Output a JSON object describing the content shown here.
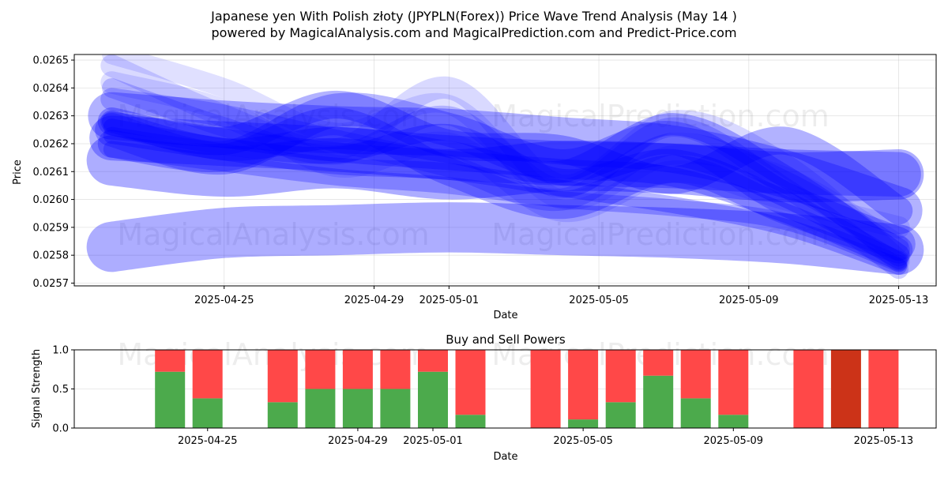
{
  "title_line1": "Japanese yen With Polish złoty (JPYPLN(Forex)) Price Wave Trend Analysis (May 14 )",
  "title_line2": "powered by MagicalAnalysis.com and MagicalPrediction.com and Predict-Price.com",
  "watermarks": [
    "MagicalAnalysis.com",
    "MagicalPrediction.com"
  ],
  "chart_data": [
    {
      "type": "area",
      "xlabel": "Date",
      "ylabel": "Price",
      "x_start": "2025-04-22",
      "x_end": "2025-05-13",
      "xlim": [
        "2025-04-21",
        "2025-05-14"
      ],
      "ylim": [
        0.02569,
        0.02652
      ],
      "yticks": [
        "0.0257",
        "0.0258",
        "0.0259",
        "0.0260",
        "0.0261",
        "0.0262",
        "0.0263",
        "0.0264",
        "0.0265"
      ],
      "xticks": [
        "2025-04-25",
        "2025-04-29",
        "2025-05-01",
        "2025-05-05",
        "2025-05-09",
        "2025-05-13"
      ],
      "grid": true,
      "band_color": "#0000ff",
      "series": [
        {
          "values": [
            0.02614,
            0.0261,
            0.02613,
            0.02609,
            0.02612,
            0.02611,
            0.02608,
            0.02609
          ],
          "width": 0.00018,
          "opacity": 0.32
        },
        {
          "values": [
            0.02622,
            0.0262,
            0.02618,
            0.02615,
            0.02613,
            0.02612,
            0.0261,
            0.02609
          ],
          "width": 0.00016,
          "opacity": 0.3
        },
        {
          "values": [
            0.02583,
            0.02588,
            0.02589,
            0.0259,
            0.02589,
            0.02588,
            0.02586,
            0.02582
          ],
          "width": 0.00018,
          "opacity": 0.32
        },
        {
          "values": [
            0.0263,
            0.02627,
            0.02625,
            0.02624,
            0.02621,
            0.02618,
            0.02609,
            0.02596
          ],
          "width": 0.00017,
          "opacity": 0.3
        },
        {
          "values": [
            0.02628,
            0.02621,
            0.02634,
            0.0262,
            0.02618,
            0.02607,
            0.02621,
            0.02596
          ],
          "width": 0.0001,
          "opacity": 0.3
        },
        {
          "values": [
            0.02625,
            0.02615,
            0.02632,
            0.02625,
            0.02612,
            0.02622,
            0.026,
            0.02584
          ],
          "width": 0.00012,
          "opacity": 0.28
        },
        {
          "values": [
            0.0262,
            0.02615,
            0.02628,
            0.0261,
            0.02598,
            0.02611,
            0.02596,
            0.02582
          ],
          "width": 0.0001,
          "opacity": 0.28
        },
        {
          "values": [
            0.02628,
            0.02618,
            0.02622,
            0.02617,
            0.0261,
            0.02627,
            0.02608,
            0.0258
          ],
          "width": 8e-05,
          "opacity": 0.3
        },
        {
          "values": [
            0.02626,
            0.02619,
            0.02616,
            0.02624,
            0.02608,
            0.02615,
            0.026,
            0.02578
          ],
          "width": 6e-05,
          "opacity": 0.3
        },
        {
          "values": [
            0.02628,
            0.02622,
            0.02617,
            0.02614,
            0.02611,
            0.02608,
            0.02595,
            0.02578
          ],
          "width": 7e-05,
          "opacity": 0.3
        },
        {
          "values": [
            0.02623,
            0.02617,
            0.02612,
            0.0261,
            0.02604,
            0.02598,
            0.0259,
            0.02576
          ],
          "width": 6e-05,
          "opacity": 0.28
        },
        {
          "values": [
            0.02618,
            0.02613,
            0.02608,
            0.02605,
            0.026,
            0.02597,
            0.02592,
            0.02577
          ],
          "width": 6e-05,
          "opacity": 0.26
        },
        {
          "values": [
            0.02636,
            0.0263,
            0.02621,
            0.02612,
            0.026,
            0.0262,
            0.02606,
            0.02582
          ],
          "width": 8e-05,
          "opacity": 0.22
        },
        {
          "values": [
            0.0264,
            0.02626,
            0.02616,
            0.0263,
            0.02604,
            0.02626,
            0.02604,
            0.02575
          ],
          "width": 7e-05,
          "opacity": 0.2
        },
        {
          "values": [
            0.02648,
            0.0263,
            0.02618,
            0.0264,
            0.02605,
            0.02628,
            0.02612,
            0.02578
          ],
          "width": 8e-05,
          "opacity": 0.15
        },
        {
          "values": [
            0.02652,
            0.0264,
            0.02624,
            0.02634,
            0.026,
            0.02616,
            0.02608,
            0.02584
          ],
          "width": 7e-05,
          "opacity": 0.12
        },
        {
          "values": [
            0.02642,
            0.02632,
            0.02612,
            0.0262,
            0.02596,
            0.0261,
            0.026,
            0.0259
          ],
          "width": 8e-05,
          "opacity": 0.13
        }
      ]
    },
    {
      "type": "bar",
      "title": "Buy and Sell Powers",
      "xlabel": "Date",
      "ylabel": "Signal Strength",
      "ylim": [
        0,
        1
      ],
      "yticks": [
        "0.0",
        "0.5",
        "1.0"
      ],
      "xticks": [
        "2025-04-25",
        "2025-04-29",
        "2025-05-01",
        "2025-05-05",
        "2025-05-09",
        "2025-05-13"
      ],
      "grid": true,
      "colors": {
        "buy": "#4caa4c",
        "sell": "#ff4848",
        "strong_sell": "#cc3318"
      },
      "bars": [
        {
          "date": "2025-04-24",
          "buy": 0.72,
          "sell": 0.28
        },
        {
          "date": "2025-04-25",
          "buy": 0.38,
          "sell": 0.62
        },
        {
          "date": "2025-04-27",
          "buy": 0.33,
          "sell": 0.67
        },
        {
          "date": "2025-04-28",
          "buy": 0.5,
          "sell": 0.5
        },
        {
          "date": "2025-04-29",
          "buy": 0.5,
          "sell": 0.5
        },
        {
          "date": "2025-04-30",
          "buy": 0.5,
          "sell": 0.5
        },
        {
          "date": "2025-05-01",
          "buy": 0.72,
          "sell": 0.28
        },
        {
          "date": "2025-05-02",
          "buy": 0.17,
          "sell": 0.83
        },
        {
          "date": "2025-05-04",
          "buy": 0.0,
          "sell": 1.0
        },
        {
          "date": "2025-05-05",
          "buy": 0.11,
          "sell": 0.89
        },
        {
          "date": "2025-05-06",
          "buy": 0.33,
          "sell": 0.67
        },
        {
          "date": "2025-05-07",
          "buy": 0.67,
          "sell": 0.33
        },
        {
          "date": "2025-05-08",
          "buy": 0.38,
          "sell": 0.62
        },
        {
          "date": "2025-05-09",
          "buy": 0.17,
          "sell": 0.83
        },
        {
          "date": "2025-05-11",
          "buy": 0.0,
          "sell": 1.0
        },
        {
          "date": "2025-05-12",
          "buy": 0.0,
          "sell": 1.0,
          "strong": true
        },
        {
          "date": "2025-05-13",
          "buy": 0.0,
          "sell": 1.0
        }
      ]
    }
  ]
}
